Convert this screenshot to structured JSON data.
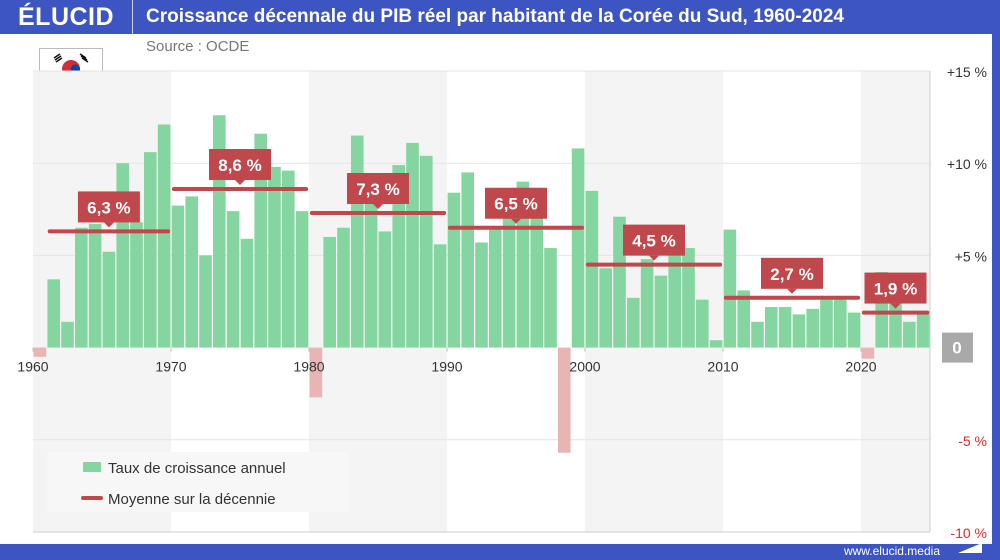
{
  "header": {
    "logo": "ÉLUCID",
    "title": "Croissance décennale du PIB réel par habitant de la Corée du Sud, 1960-2024",
    "source": "Source : OCDE"
  },
  "footer": {
    "url": "www.elucid.media"
  },
  "colors": {
    "brand": "#3d55c0",
    "positive_bar": "#85d5a0",
    "negative_bar": "#e8b4b4",
    "average": "#c0474b",
    "negative_tick": "#d0302c"
  },
  "chart_data": {
    "type": "bar",
    "title": "Croissance décennale du PIB réel par habitant de la Corée du Sud, 1960-2024",
    "ylim": [
      -10,
      15
    ],
    "y_ticks": [
      {
        "value": 15,
        "label": "+15 %"
      },
      {
        "value": 10,
        "label": "+10 %"
      },
      {
        "value": 5,
        "label": "+5 %"
      },
      {
        "value": 0,
        "label": "0"
      },
      {
        "value": -5,
        "label": "-5 %"
      },
      {
        "value": -10,
        "label": "-10 %"
      }
    ],
    "x_ticks": [
      "1960",
      "1970",
      "1980",
      "1990",
      "2000",
      "2010",
      "2020"
    ],
    "grid": true,
    "legend_position": "bottom-left",
    "legend": [
      "Taux de croissance annuel",
      "Moyenne sur la décennie"
    ],
    "years": [
      1960,
      1961,
      1962,
      1963,
      1964,
      1965,
      1966,
      1967,
      1968,
      1969,
      1970,
      1971,
      1972,
      1973,
      1974,
      1975,
      1976,
      1977,
      1978,
      1979,
      1980,
      1981,
      1982,
      1983,
      1984,
      1985,
      1986,
      1987,
      1988,
      1989,
      1990,
      1991,
      1992,
      1993,
      1994,
      1995,
      1996,
      1997,
      1998,
      1999,
      2000,
      2001,
      2002,
      2003,
      2004,
      2005,
      2006,
      2007,
      2008,
      2009,
      2010,
      2011,
      2012,
      2013,
      2014,
      2015,
      2016,
      2017,
      2018,
      2019,
      2020,
      2021,
      2022,
      2023,
      2024
    ],
    "values": [
      -0.5,
      3.7,
      1.4,
      6.5,
      6.7,
      5.2,
      10.0,
      6.8,
      10.6,
      12.1,
      7.7,
      8.2,
      5.0,
      12.6,
      7.4,
      5.9,
      11.6,
      9.8,
      9.6,
      7.4,
      -2.7,
      6.0,
      6.5,
      11.5,
      8.0,
      6.3,
      9.9,
      11.1,
      10.4,
      5.6,
      8.4,
      9.5,
      5.7,
      6.4,
      7.2,
      9.0,
      7.2,
      5.4,
      -5.7,
      10.8,
      8.5,
      4.3,
      7.1,
      2.7,
      4.8,
      3.9,
      5.0,
      5.4,
      2.6,
      0.4,
      6.4,
      3.1,
      1.4,
      2.2,
      2.2,
      1.8,
      2.1,
      2.6,
      2.6,
      1.9,
      -0.6,
      4.1,
      2.5,
      1.4,
      2.0
    ],
    "decade_averages": [
      {
        "start": 1961,
        "end": 1969,
        "value": 6.3,
        "label": "6,3 %"
      },
      {
        "start": 1970,
        "end": 1979,
        "value": 8.6,
        "label": "8,6 %"
      },
      {
        "start": 1980,
        "end": 1989,
        "value": 7.3,
        "label": "7,3 %"
      },
      {
        "start": 1990,
        "end": 1999,
        "value": 6.5,
        "label": "6,5 %"
      },
      {
        "start": 2000,
        "end": 2009,
        "value": 4.5,
        "label": "4,5 %"
      },
      {
        "start": 2010,
        "end": 2019,
        "value": 2.7,
        "label": "2,7 %"
      },
      {
        "start": 2020,
        "end": 2024,
        "value": 1.9,
        "label": "1,9 %"
      }
    ]
  }
}
